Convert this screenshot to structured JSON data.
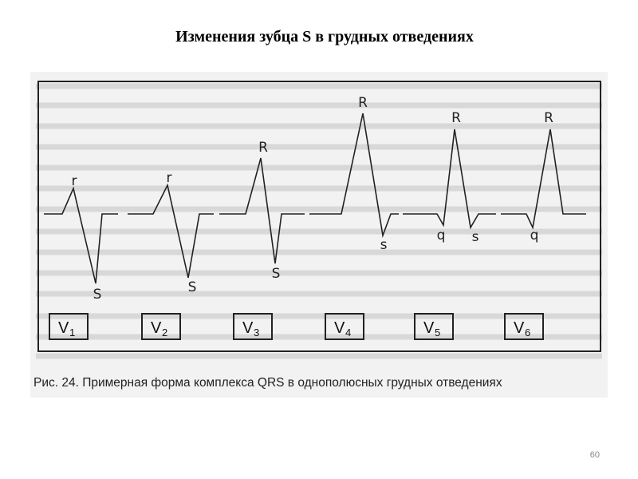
{
  "header": {
    "title": "Изменения зубца S в грудных отведениях"
  },
  "figure": {
    "leads": [
      {
        "letter": "V",
        "sub": "1",
        "waves": [
          "r",
          "S"
        ]
      },
      {
        "letter": "V",
        "sub": "2",
        "waves": [
          "r",
          "S"
        ]
      },
      {
        "letter": "V",
        "sub": "3",
        "waves": [
          "R",
          "S"
        ]
      },
      {
        "letter": "V",
        "sub": "4",
        "waves": [
          "R",
          "s"
        ]
      },
      {
        "letter": "V",
        "sub": "5",
        "waves": [
          "R",
          "q",
          "s"
        ]
      },
      {
        "letter": "V",
        "sub": "6",
        "waves": [
          "R",
          "q"
        ]
      }
    ],
    "caption": "Рис. 24. Примерная форма комплекса QRS в однополюсных грудных отведениях"
  },
  "footer": {
    "page": "60"
  }
}
